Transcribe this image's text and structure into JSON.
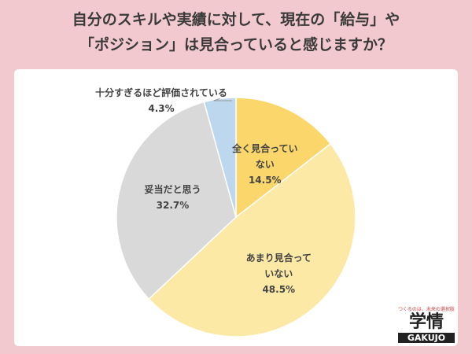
{
  "chart_data": {
    "type": "pie",
    "title": [
      "自分のスキルや実績に対して、現在の「給与」や",
      "「ポジション」は見合っていると感じますか？"
    ],
    "categories": [
      "全く見合っていない",
      "あまり見合っていない",
      "妥当だと思う",
      "十分すぎるほど評価されている"
    ],
    "values": [
      14.5,
      48.5,
      32.7,
      4.3
    ],
    "value_labels": [
      "14.5%",
      "48.5%",
      "32.7%",
      "4.3%"
    ],
    "colors": [
      "#fbd66b",
      "#fde9a6",
      "#d9d9d9",
      "#bdd7ee"
    ]
  },
  "logo": {
    "tagline": "つくるのは、未来の選択肢",
    "mark": "学情",
    "name": "GAKUJO"
  }
}
